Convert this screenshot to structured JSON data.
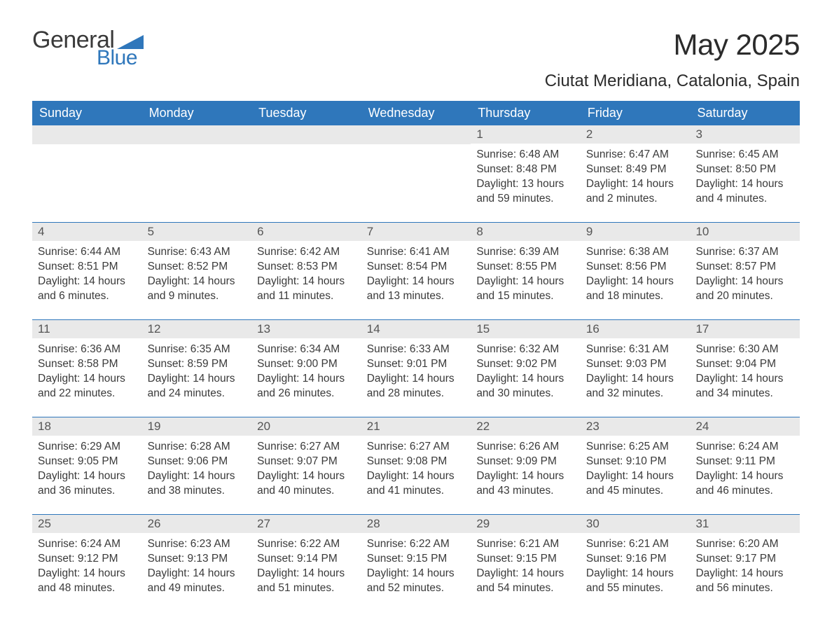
{
  "brand": {
    "word1": "General",
    "word2": "Blue"
  },
  "title": "May 2025",
  "subtitle": "Ciutat Meridiana, Catalonia, Spain",
  "colors": {
    "header_bg": "#2f77bb",
    "header_text": "#ffffff",
    "daynum_bg": "#e9e9e9",
    "body_text": "#3a3a3a",
    "page_bg": "#ffffff",
    "logo_accent": "#2f77bb",
    "rule": "#2f77bb"
  },
  "typography": {
    "title_fontsize": 42,
    "subtitle_fontsize": 24,
    "dayheader_fontsize": 18,
    "cell_fontsize": 15.5,
    "font_family": "Arial"
  },
  "day_names": [
    "Sunday",
    "Monday",
    "Tuesday",
    "Wednesday",
    "Thursday",
    "Friday",
    "Saturday"
  ],
  "weeks": [
    [
      {
        "empty": true
      },
      {
        "empty": true
      },
      {
        "empty": true
      },
      {
        "empty": true
      },
      {
        "day": "1",
        "sunrise": "Sunrise: 6:48 AM",
        "sunset": "Sunset: 8:48 PM",
        "daylight": "Daylight: 13 hours and 59 minutes."
      },
      {
        "day": "2",
        "sunrise": "Sunrise: 6:47 AM",
        "sunset": "Sunset: 8:49 PM",
        "daylight": "Daylight: 14 hours and 2 minutes."
      },
      {
        "day": "3",
        "sunrise": "Sunrise: 6:45 AM",
        "sunset": "Sunset: 8:50 PM",
        "daylight": "Daylight: 14 hours and 4 minutes."
      }
    ],
    [
      {
        "day": "4",
        "sunrise": "Sunrise: 6:44 AM",
        "sunset": "Sunset: 8:51 PM",
        "daylight": "Daylight: 14 hours and 6 minutes."
      },
      {
        "day": "5",
        "sunrise": "Sunrise: 6:43 AM",
        "sunset": "Sunset: 8:52 PM",
        "daylight": "Daylight: 14 hours and 9 minutes."
      },
      {
        "day": "6",
        "sunrise": "Sunrise: 6:42 AM",
        "sunset": "Sunset: 8:53 PM",
        "daylight": "Daylight: 14 hours and 11 minutes."
      },
      {
        "day": "7",
        "sunrise": "Sunrise: 6:41 AM",
        "sunset": "Sunset: 8:54 PM",
        "daylight": "Daylight: 14 hours and 13 minutes."
      },
      {
        "day": "8",
        "sunrise": "Sunrise: 6:39 AM",
        "sunset": "Sunset: 8:55 PM",
        "daylight": "Daylight: 14 hours and 15 minutes."
      },
      {
        "day": "9",
        "sunrise": "Sunrise: 6:38 AM",
        "sunset": "Sunset: 8:56 PM",
        "daylight": "Daylight: 14 hours and 18 minutes."
      },
      {
        "day": "10",
        "sunrise": "Sunrise: 6:37 AM",
        "sunset": "Sunset: 8:57 PM",
        "daylight": "Daylight: 14 hours and 20 minutes."
      }
    ],
    [
      {
        "day": "11",
        "sunrise": "Sunrise: 6:36 AM",
        "sunset": "Sunset: 8:58 PM",
        "daylight": "Daylight: 14 hours and 22 minutes."
      },
      {
        "day": "12",
        "sunrise": "Sunrise: 6:35 AM",
        "sunset": "Sunset: 8:59 PM",
        "daylight": "Daylight: 14 hours and 24 minutes."
      },
      {
        "day": "13",
        "sunrise": "Sunrise: 6:34 AM",
        "sunset": "Sunset: 9:00 PM",
        "daylight": "Daylight: 14 hours and 26 minutes."
      },
      {
        "day": "14",
        "sunrise": "Sunrise: 6:33 AM",
        "sunset": "Sunset: 9:01 PM",
        "daylight": "Daylight: 14 hours and 28 minutes."
      },
      {
        "day": "15",
        "sunrise": "Sunrise: 6:32 AM",
        "sunset": "Sunset: 9:02 PM",
        "daylight": "Daylight: 14 hours and 30 minutes."
      },
      {
        "day": "16",
        "sunrise": "Sunrise: 6:31 AM",
        "sunset": "Sunset: 9:03 PM",
        "daylight": "Daylight: 14 hours and 32 minutes."
      },
      {
        "day": "17",
        "sunrise": "Sunrise: 6:30 AM",
        "sunset": "Sunset: 9:04 PM",
        "daylight": "Daylight: 14 hours and 34 minutes."
      }
    ],
    [
      {
        "day": "18",
        "sunrise": "Sunrise: 6:29 AM",
        "sunset": "Sunset: 9:05 PM",
        "daylight": "Daylight: 14 hours and 36 minutes."
      },
      {
        "day": "19",
        "sunrise": "Sunrise: 6:28 AM",
        "sunset": "Sunset: 9:06 PM",
        "daylight": "Daylight: 14 hours and 38 minutes."
      },
      {
        "day": "20",
        "sunrise": "Sunrise: 6:27 AM",
        "sunset": "Sunset: 9:07 PM",
        "daylight": "Daylight: 14 hours and 40 minutes."
      },
      {
        "day": "21",
        "sunrise": "Sunrise: 6:27 AM",
        "sunset": "Sunset: 9:08 PM",
        "daylight": "Daylight: 14 hours and 41 minutes."
      },
      {
        "day": "22",
        "sunrise": "Sunrise: 6:26 AM",
        "sunset": "Sunset: 9:09 PM",
        "daylight": "Daylight: 14 hours and 43 minutes."
      },
      {
        "day": "23",
        "sunrise": "Sunrise: 6:25 AM",
        "sunset": "Sunset: 9:10 PM",
        "daylight": "Daylight: 14 hours and 45 minutes."
      },
      {
        "day": "24",
        "sunrise": "Sunrise: 6:24 AM",
        "sunset": "Sunset: 9:11 PM",
        "daylight": "Daylight: 14 hours and 46 minutes."
      }
    ],
    [
      {
        "day": "25",
        "sunrise": "Sunrise: 6:24 AM",
        "sunset": "Sunset: 9:12 PM",
        "daylight": "Daylight: 14 hours and 48 minutes."
      },
      {
        "day": "26",
        "sunrise": "Sunrise: 6:23 AM",
        "sunset": "Sunset: 9:13 PM",
        "daylight": "Daylight: 14 hours and 49 minutes."
      },
      {
        "day": "27",
        "sunrise": "Sunrise: 6:22 AM",
        "sunset": "Sunset: 9:14 PM",
        "daylight": "Daylight: 14 hours and 51 minutes."
      },
      {
        "day": "28",
        "sunrise": "Sunrise: 6:22 AM",
        "sunset": "Sunset: 9:15 PM",
        "daylight": "Daylight: 14 hours and 52 minutes."
      },
      {
        "day": "29",
        "sunrise": "Sunrise: 6:21 AM",
        "sunset": "Sunset: 9:15 PM",
        "daylight": "Daylight: 14 hours and 54 minutes."
      },
      {
        "day": "30",
        "sunrise": "Sunrise: 6:21 AM",
        "sunset": "Sunset: 9:16 PM",
        "daylight": "Daylight: 14 hours and 55 minutes."
      },
      {
        "day": "31",
        "sunrise": "Sunrise: 6:20 AM",
        "sunset": "Sunset: 9:17 PM",
        "daylight": "Daylight: 14 hours and 56 minutes."
      }
    ]
  ]
}
